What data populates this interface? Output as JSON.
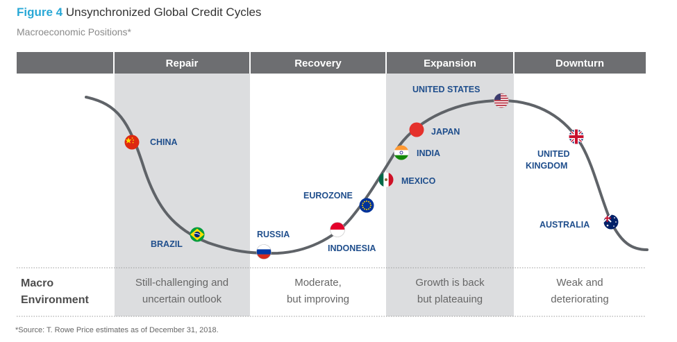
{
  "figure": {
    "number": "Figure 4",
    "title": "Unsynchronized Global Credit Cycles",
    "subtitle": "Macroeconomic Positions*"
  },
  "phases": [
    {
      "label": "Repair",
      "environment": [
        "Still-challenging and",
        "uncertain outlook"
      ],
      "shaded": true
    },
    {
      "label": "Recovery",
      "environment": [
        "Moderate,",
        "but improving"
      ],
      "shaded": false
    },
    {
      "label": "Expansion",
      "environment": [
        "Growth is back",
        "but plateauing"
      ],
      "shaded": true
    },
    {
      "label": "Downturn",
      "environment": [
        "Weak and",
        "deteriorating"
      ],
      "shaded": false
    }
  ],
  "row_label": [
    "Macro",
    "Environment"
  ],
  "countries": [
    {
      "label": [
        "CHINA"
      ],
      "flag": "china-flag",
      "phase": "Repair"
    },
    {
      "label": [
        "BRAZIL"
      ],
      "flag": "brazil-flag",
      "phase": "Repair"
    },
    {
      "label": [
        "RUSSIA"
      ],
      "flag": "russia-flag",
      "phase": "Recovery"
    },
    {
      "label": [
        "INDONESIA"
      ],
      "flag": "indonesia-flag",
      "phase": "Recovery"
    },
    {
      "label": [
        "EUROZONE"
      ],
      "flag": "eu-flag",
      "phase": "Recovery"
    },
    {
      "label": [
        "MEXICO"
      ],
      "flag": "mexico-flag",
      "phase": "Expansion"
    },
    {
      "label": [
        "INDIA"
      ],
      "flag": "india-flag",
      "phase": "Expansion"
    },
    {
      "label": [
        "JAPAN"
      ],
      "flag": "japan-flag",
      "phase": "Expansion"
    },
    {
      "label": [
        "UNITED STATES"
      ],
      "flag": "usa-flag",
      "phase": "Expansion"
    },
    {
      "label": [
        "UNITED",
        "KINGDOM"
      ],
      "flag": "uk-flag",
      "phase": "Downturn"
    },
    {
      "label": [
        "AUSTRALIA"
      ],
      "flag": "australia-flag",
      "phase": "Downturn"
    }
  ],
  "source": "*Source: T. Rowe Price estimates as of December 31, 2018.",
  "colors": {
    "header_bar": "#6d6e71",
    "shaded_column": "#dcdddf",
    "curve": "#5f6368",
    "country_label": "#1f4e8c",
    "title_accent": "#29a8d6"
  }
}
